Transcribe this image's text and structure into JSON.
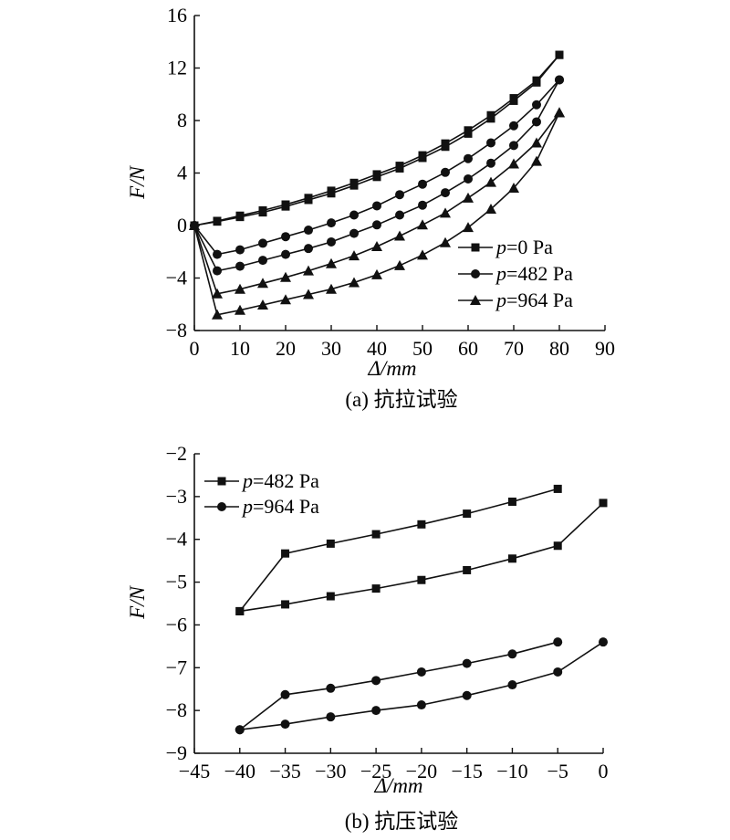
{
  "chart_data": [
    {
      "type": "line",
      "caption": "(a) 抗拉试验",
      "xlabel": "Δ/mm",
      "ylabel": "F/N",
      "xlim": [
        0,
        90
      ],
      "ylim": [
        -8,
        16
      ],
      "xticks": [
        "0",
        "10",
        "20",
        "30",
        "40",
        "50",
        "60",
        "70",
        "80",
        "90"
      ],
      "yticks": [
        "−8",
        "−4",
        "0",
        "4",
        "8",
        "12",
        "16"
      ],
      "legend_position": "bottom-right",
      "series": [
        {
          "name": "p=0 Pa",
          "marker": "square",
          "group": "p=0 Pa",
          "x": [
            0,
            5,
            10,
            15,
            20,
            25,
            30,
            35,
            40,
            45,
            50,
            55,
            60,
            65,
            70,
            75,
            80
          ],
          "y": [
            0,
            0.35,
            0.75,
            1.15,
            1.6,
            2.1,
            2.65,
            3.25,
            3.9,
            4.55,
            5.35,
            6.25,
            7.25,
            8.4,
            9.7,
            11.05,
            13.0
          ]
        },
        {
          "name": "",
          "marker": "square",
          "group": "p=0 Pa",
          "x": [
            0,
            5,
            10,
            15,
            20,
            25,
            30,
            35,
            40,
            45,
            50,
            55,
            60,
            65,
            70,
            75,
            80
          ],
          "y": [
            0,
            0.3,
            0.65,
            1.0,
            1.45,
            1.95,
            2.45,
            3.05,
            3.7,
            4.35,
            5.15,
            6.0,
            7.0,
            8.15,
            9.5,
            10.9,
            13.0
          ]
        },
        {
          "name": "p=482 Pa",
          "marker": "circle",
          "group": "p=482 Pa",
          "x": [
            0,
            5,
            10,
            15,
            20,
            25,
            30,
            35,
            40,
            45,
            50,
            55,
            60,
            65,
            70,
            75,
            80
          ],
          "y": [
            0,
            -2.2,
            -1.85,
            -1.35,
            -0.85,
            -0.35,
            0.2,
            0.8,
            1.5,
            2.35,
            3.15,
            4.05,
            5.1,
            6.3,
            7.6,
            9.2,
            11.1
          ]
        },
        {
          "name": "",
          "marker": "circle",
          "group": "p=482 Pa",
          "x": [
            0,
            5,
            10,
            15,
            20,
            25,
            30,
            35,
            40,
            45,
            50,
            55,
            60,
            65,
            70,
            75,
            80
          ],
          "y": [
            0,
            -3.45,
            -3.1,
            -2.65,
            -2.2,
            -1.75,
            -1.25,
            -0.6,
            0.05,
            0.8,
            1.55,
            2.5,
            3.55,
            4.75,
            6.1,
            7.9,
            11.1
          ]
        },
        {
          "name": "p=964 Pa",
          "marker": "triangle",
          "group": "p=964 Pa",
          "x": [
            0,
            5,
            10,
            15,
            20,
            25,
            30,
            35,
            40,
            45,
            50,
            55,
            60,
            65,
            70,
            75,
            80
          ],
          "y": [
            0,
            -5.2,
            -4.85,
            -4.4,
            -3.95,
            -3.45,
            -2.9,
            -2.3,
            -1.6,
            -0.8,
            0.05,
            0.95,
            2.1,
            3.3,
            4.7,
            6.3,
            8.6
          ]
        },
        {
          "name": "",
          "marker": "triangle",
          "group": "p=964 Pa",
          "x": [
            0,
            5,
            10,
            15,
            20,
            25,
            30,
            35,
            40,
            45,
            50,
            55,
            60,
            65,
            70,
            75,
            80
          ],
          "y": [
            0,
            -6.8,
            -6.45,
            -6.05,
            -5.65,
            -5.25,
            -4.85,
            -4.35,
            -3.75,
            -3.05,
            -2.25,
            -1.3,
            -0.15,
            1.25,
            2.85,
            4.9,
            8.6
          ]
        }
      ],
      "legend": [
        "p=0 Pa",
        "p=482 Pa",
        "p=964 Pa"
      ]
    },
    {
      "type": "line",
      "caption": "(b) 抗压试验",
      "xlabel": "Δ/mm",
      "ylabel": "F/N",
      "xlim": [
        -45,
        0
      ],
      "ylim": [
        -9,
        -2
      ],
      "xticks": [
        "−45",
        "−40",
        "−35",
        "−30",
        "−25",
        "−20",
        "−15",
        "−10",
        "−5",
        "0"
      ],
      "yticks": [
        "−9",
        "−8",
        "−7",
        "−6",
        "−5",
        "−4",
        "−3",
        "−2"
      ],
      "legend_position": "top-left",
      "series": [
        {
          "name": "p=482 Pa",
          "marker": "square",
          "group": "p=482 Pa",
          "x": [
            0,
            -5,
            -10,
            -15,
            -20,
            -25,
            -30,
            -35,
            -40
          ],
          "y": [
            -3.15,
            -4.15,
            -4.45,
            -4.72,
            -4.95,
            -5.15,
            -5.33,
            -5.52,
            -5.68
          ]
        },
        {
          "name": "",
          "marker": "square",
          "group": "p=482 Pa",
          "x": [
            -40,
            -35,
            -30,
            -25,
            -20,
            -15,
            -10,
            -5
          ],
          "y": [
            -5.68,
            -4.33,
            -4.1,
            -3.88,
            -3.65,
            -3.4,
            -3.12,
            -2.82
          ]
        },
        {
          "name": "p=964 Pa",
          "marker": "circle",
          "group": "p=964 Pa",
          "x": [
            0,
            -5,
            -10,
            -15,
            -20,
            -25,
            -30,
            -35,
            -40
          ],
          "y": [
            -6.4,
            -7.1,
            -7.4,
            -7.65,
            -7.87,
            -8.0,
            -8.15,
            -8.32,
            -8.45
          ]
        },
        {
          "name": "",
          "marker": "circle",
          "group": "p=964 Pa",
          "x": [
            -40,
            -35,
            -30,
            -25,
            -20,
            -15,
            -10,
            -5
          ],
          "y": [
            -8.45,
            -7.63,
            -7.48,
            -7.3,
            -7.1,
            -6.9,
            -6.68,
            -6.4
          ]
        }
      ],
      "legend": [
        "p=482 Pa",
        "p=964 Pa"
      ]
    }
  ]
}
